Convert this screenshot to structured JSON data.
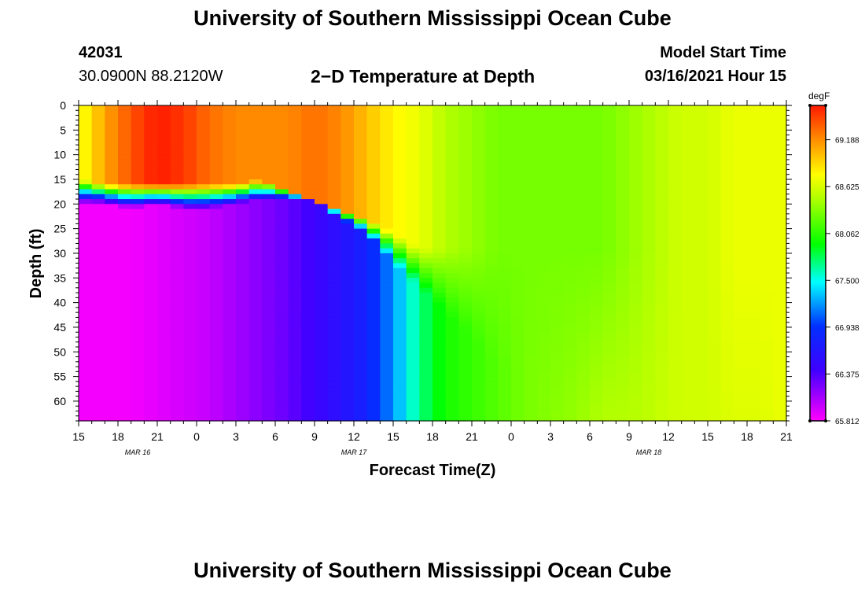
{
  "page": {
    "title_top": "University of Southern Mississippi Ocean Cube",
    "title_bottom": "University of Southern Mississippi Ocean Cube",
    "station_id": "42031",
    "coords": "30.0900N 88.2120W",
    "model_start_label": "Model Start Time",
    "model_start_value": "03/16/2021 Hour 15"
  },
  "chart_data": {
    "type": "heatmap",
    "title": "2−D Temperature at Depth",
    "xlabel": "Forecast Time(Z)",
    "ylabel": "Depth (ft)",
    "x_range_hours": [
      0,
      54
    ],
    "y_range_ft": [
      0,
      64
    ],
    "y_ticks": [
      "0",
      "5",
      "10",
      "15",
      "20",
      "25",
      "30",
      "35",
      "40",
      "45",
      "50",
      "55",
      "60"
    ],
    "x_ticks": [
      "15",
      "18",
      "21",
      "0",
      "3",
      "6",
      "9",
      "12",
      "15",
      "18",
      "21",
      "0",
      "3",
      "6",
      "9",
      "12",
      "15",
      "18",
      "21"
    ],
    "date_labels": [
      {
        "text": "MAR 16",
        "hour": 4.5
      },
      {
        "text": "MAR 17",
        "hour": 21
      },
      {
        "text": "MAR 18",
        "hour": 43.5
      }
    ],
    "colorbar": {
      "unit": "degF",
      "min": 65.812,
      "max": 69.6,
      "labels": [
        "69.188",
        "68.625",
        "68.062",
        "67.500",
        "66.938",
        "66.375",
        "65.812"
      ]
    },
    "thermocline_upper_ft": [
      [
        0,
        15
      ],
      [
        2,
        16
      ],
      [
        4,
        16
      ],
      [
        6,
        16
      ],
      [
        8,
        16
      ],
      [
        10,
        16
      ],
      [
        12,
        16
      ],
      [
        14,
        15
      ],
      [
        16,
        17
      ],
      [
        18,
        19
      ],
      [
        20,
        21
      ],
      [
        22,
        23
      ],
      [
        24,
        26
      ],
      [
        26,
        29
      ],
      [
        28,
        29
      ],
      [
        30,
        29
      ],
      [
        32,
        29
      ],
      [
        34,
        29
      ],
      [
        36,
        29
      ],
      [
        38,
        29
      ],
      [
        40,
        29
      ],
      [
        42,
        29
      ],
      [
        44,
        29
      ],
      [
        46,
        29
      ],
      [
        48,
        29
      ],
      [
        50,
        29
      ],
      [
        52,
        29
      ],
      [
        54,
        29
      ]
    ],
    "thermocline_lower_ft": [
      [
        0,
        20
      ],
      [
        2,
        20
      ],
      [
        4,
        21
      ],
      [
        6,
        20
      ],
      [
        8,
        21
      ],
      [
        10,
        21
      ],
      [
        12,
        20
      ],
      [
        14,
        19
      ],
      [
        16,
        19
      ],
      [
        18,
        19
      ],
      [
        20,
        23
      ],
      [
        22,
        26
      ],
      [
        24,
        32
      ],
      [
        26,
        37
      ],
      [
        28,
        42
      ],
      [
        30,
        47
      ],
      [
        32,
        53
      ],
      [
        34,
        58
      ],
      [
        36,
        64
      ],
      [
        38,
        64
      ],
      [
        40,
        64
      ],
      [
        42,
        64
      ],
      [
        44,
        64
      ],
      [
        46,
        64
      ],
      [
        48,
        64
      ],
      [
        50,
        64
      ],
      [
        52,
        64
      ],
      [
        54,
        64
      ]
    ],
    "surface_temp_degF": [
      [
        0,
        68.7
      ],
      [
        2,
        69.1
      ],
      [
        4,
        69.4
      ],
      [
        6,
        69.6
      ],
      [
        8,
        69.5
      ],
      [
        10,
        69.3
      ],
      [
        12,
        69.2
      ],
      [
        14,
        69.2
      ],
      [
        16,
        69.2
      ],
      [
        18,
        69.3
      ],
      [
        20,
        69.2
      ],
      [
        22,
        69.0
      ],
      [
        24,
        68.8
      ],
      [
        26,
        68.7
      ],
      [
        28,
        68.5
      ],
      [
        30,
        68.4
      ],
      [
        32,
        68.3
      ],
      [
        34,
        68.3
      ],
      [
        36,
        68.3
      ],
      [
        38,
        68.3
      ],
      [
        40,
        68.3
      ],
      [
        42,
        68.4
      ],
      [
        44,
        68.5
      ],
      [
        46,
        68.6
      ],
      [
        48,
        68.6
      ],
      [
        50,
        68.7
      ],
      [
        52,
        68.7
      ],
      [
        54,
        68.7
      ]
    ],
    "deep_temp_degF": [
      [
        0,
        65.85
      ],
      [
        2,
        65.85
      ],
      [
        4,
        65.85
      ],
      [
        6,
        65.9
      ],
      [
        8,
        65.95
      ],
      [
        10,
        66.0
      ],
      [
        12,
        66.1
      ],
      [
        14,
        66.2
      ],
      [
        16,
        66.3
      ],
      [
        18,
        66.45
      ],
      [
        20,
        66.6
      ],
      [
        22,
        66.8
      ],
      [
        24,
        67.2
      ],
      [
        26,
        67.7
      ],
      [
        28,
        68.0
      ],
      [
        30,
        68.1
      ],
      [
        32,
        68.2
      ],
      [
        34,
        68.3
      ],
      [
        36,
        68.35
      ],
      [
        38,
        68.4
      ],
      [
        40,
        68.5
      ],
      [
        42,
        68.5
      ],
      [
        44,
        68.55
      ],
      [
        46,
        68.6
      ],
      [
        48,
        68.6
      ],
      [
        50,
        68.65
      ],
      [
        52,
        68.65
      ],
      [
        54,
        68.7
      ]
    ]
  }
}
